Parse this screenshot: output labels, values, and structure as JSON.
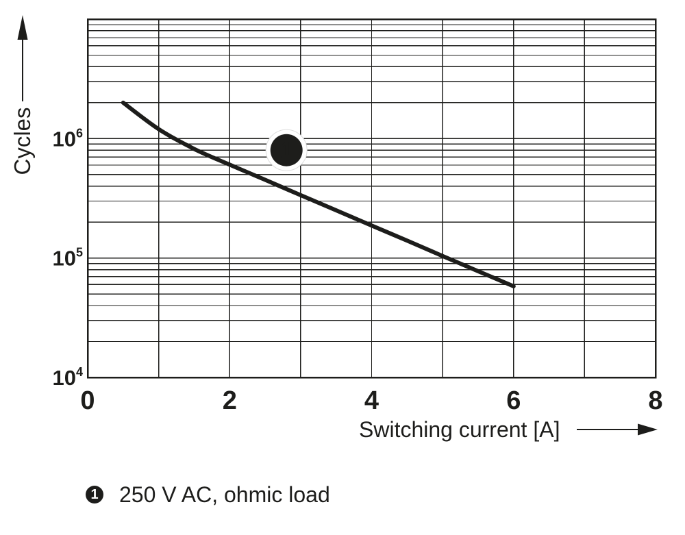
{
  "figure": {
    "background": "#ffffff",
    "ink_color": "#1d1d1b"
  },
  "chart_data": {
    "type": "line",
    "title": "",
    "xlabel": "Switching current [A]",
    "ylabel": "Cycles",
    "grid": "on",
    "x_axis": {
      "scale": "linear",
      "min": 0,
      "max": 8,
      "ticks": [
        0,
        2,
        4,
        6,
        8
      ],
      "gridline_step": 1
    },
    "y_axis": {
      "scale": "log",
      "min": 10000,
      "max": 10000000,
      "ticks": [
        {
          "base": "10",
          "exp": "6",
          "value": 1000000
        },
        {
          "base": "10",
          "exp": "5",
          "value": 100000
        },
        {
          "base": "10",
          "exp": "4",
          "value": 10000
        }
      ],
      "minor_gridlines_per_decade": [
        2,
        3,
        4,
        5,
        6,
        7,
        8,
        9
      ]
    },
    "series": [
      {
        "id": "1",
        "name": "250 V AC, ohmic load",
        "x": [
          0.5,
          1,
          1.5,
          2,
          2.5,
          3,
          3.5,
          4,
          4.5,
          5,
          5.5,
          6
        ],
        "cycles": [
          2000000,
          1200000,
          820000,
          605000,
          452000,
          336000,
          251000,
          187000,
          140000,
          104000,
          77600,
          58000
        ]
      }
    ],
    "callout": {
      "label": "1",
      "x": 2.8,
      "cycles": 800000
    },
    "legend": [
      {
        "symbol": "1",
        "label": "250 V AC, ohmic load"
      }
    ]
  }
}
